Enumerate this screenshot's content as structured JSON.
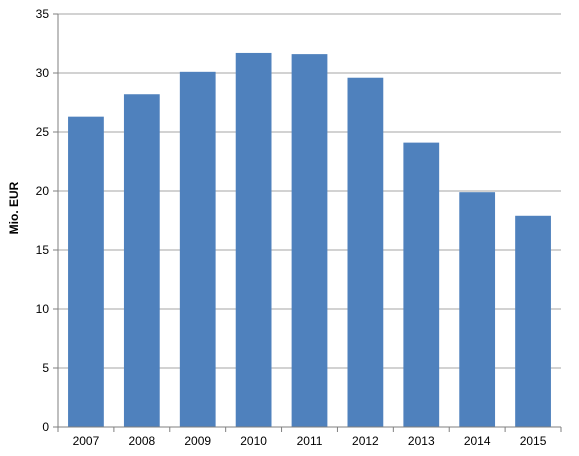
{
  "chart_data": {
    "type": "bar",
    "title": "",
    "xlabel": "",
    "ylabel": "Mio. EUR",
    "categories": [
      "2007",
      "2008",
      "2009",
      "2010",
      "2011",
      "2012",
      "2013",
      "2014",
      "2015"
    ],
    "values": [
      26.3,
      28.2,
      30.1,
      31.7,
      31.6,
      29.6,
      24.1,
      19.9,
      17.9
    ],
    "ylim": [
      0,
      35
    ],
    "yticks": [
      0,
      5,
      10,
      15,
      20,
      25,
      30,
      35
    ],
    "grid": true,
    "legend": "none",
    "bar_color": "#4F81BD",
    "grid_color": "#A6A6A6",
    "axis_color": "#7F7F7F"
  }
}
